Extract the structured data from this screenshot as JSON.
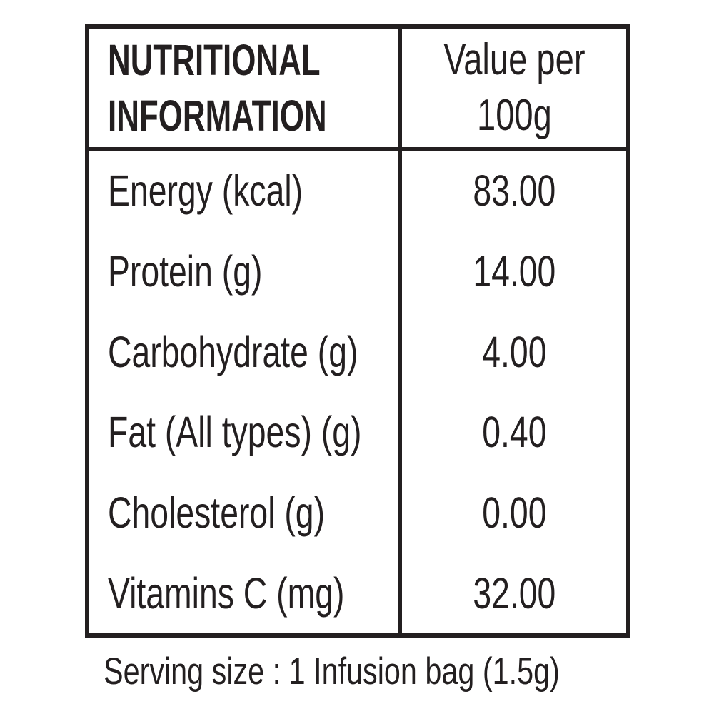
{
  "label": {
    "header": {
      "title_line1": "NUTRITIONAL",
      "title_line2": "INFORMATION",
      "value_col_line1": "Value per",
      "value_col_line2": "100g"
    },
    "rows": [
      {
        "label": "Energy (kcal)",
        "value": "83.00"
      },
      {
        "label": "Protein (g)",
        "value": "14.00"
      },
      {
        "label": "Carbohydrate (g)",
        "value": "4.00"
      },
      {
        "label": "Fat (All types) (g)",
        "value": "0.40"
      },
      {
        "label": "Cholesterol (g)",
        "value": "0.00"
      },
      {
        "label": "Vitamins C (mg)",
        "value": "32.00"
      }
    ],
    "serving_note": "Serving size : 1 Infusion bag (1.5g)"
  },
  "colors": {
    "text": "#231f20",
    "border": "#231f20",
    "background": "#ffffff"
  }
}
